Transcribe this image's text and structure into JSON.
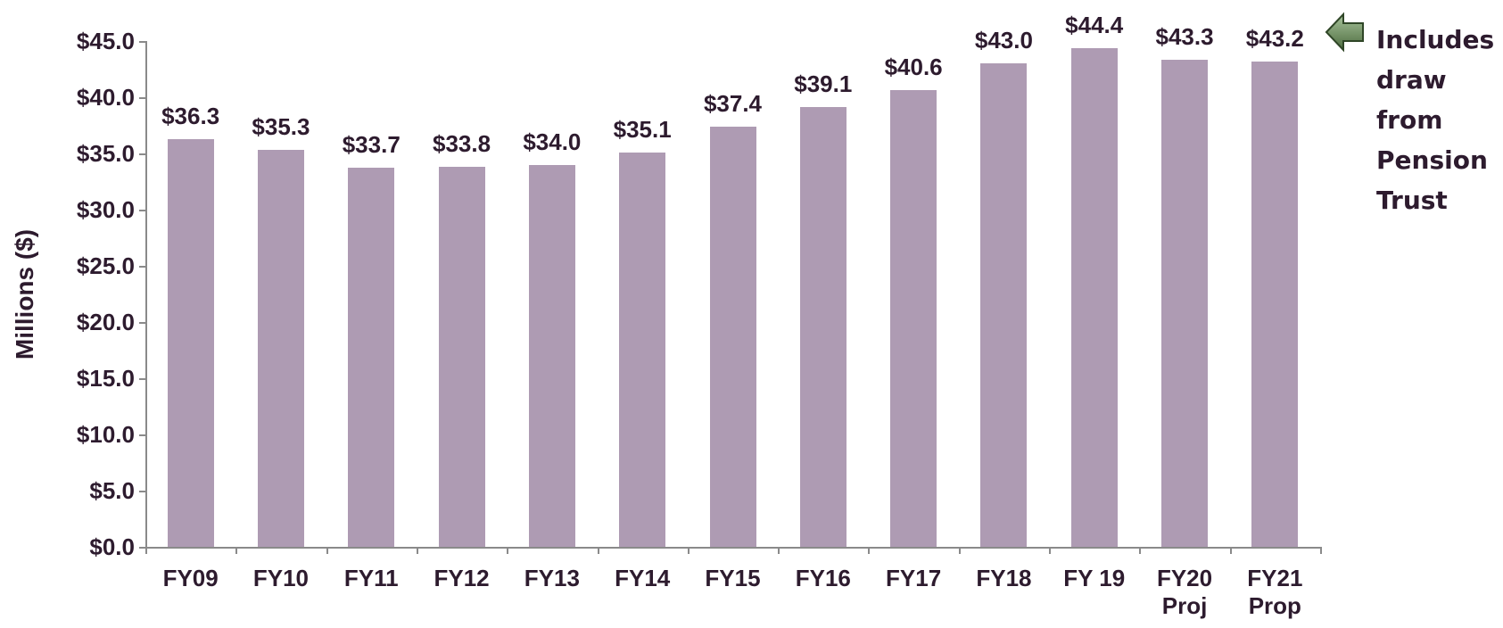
{
  "chart_data": {
    "type": "bar",
    "y_axis_label": "Millions ($)",
    "annotation": "Includes draw from Pension Trust",
    "categories": [
      "FY09",
      "FY10",
      "FY11",
      "FY12",
      "FY13",
      "FY14",
      "FY15",
      "FY16",
      "FY17",
      "FY18",
      "FY 19",
      "FY20\nProj",
      "FY21\nProp"
    ],
    "values": [
      36.3,
      35.3,
      33.7,
      33.8,
      34.0,
      35.1,
      37.4,
      39.1,
      40.6,
      43.0,
      44.4,
      43.3,
      43.2
    ],
    "value_labels": [
      "$36.3",
      "$35.3",
      "$33.7",
      "$33.8",
      "$34.0",
      "$35.1",
      "$37.4",
      "$39.1",
      "$40.6",
      "$43.0",
      "$44.4",
      "$43.3",
      "$43.2"
    ],
    "color": "#ae9bb3",
    "ylim": [
      0,
      45
    ],
    "yticks": [
      {
        "value": 0,
        "label": "$0.0"
      },
      {
        "value": 5,
        "label": "$5.0"
      },
      {
        "value": 10,
        "label": "$10.0"
      },
      {
        "value": 15,
        "label": "$15.0"
      },
      {
        "value": 20,
        "label": "$20.0"
      },
      {
        "value": 25,
        "label": "$25.0"
      },
      {
        "value": 30,
        "label": "$30.0"
      },
      {
        "value": 35,
        "label": "$35.0"
      },
      {
        "value": 40,
        "label": "$40.0"
      },
      {
        "value": 45,
        "label": "$45.0"
      }
    ],
    "grid": false
  }
}
